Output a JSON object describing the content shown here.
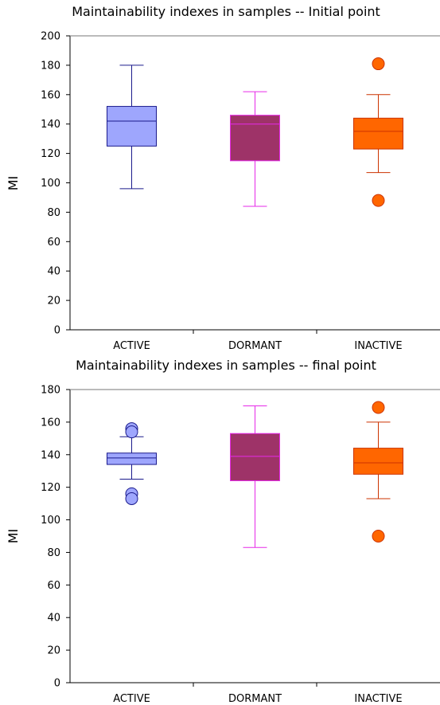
{
  "chart_data": [
    {
      "type": "box",
      "title": "Maintainability indexes in samples -- Initial point",
      "xlabel": "",
      "ylabel": "MI",
      "ylim": [
        0,
        200
      ],
      "yticks": [
        "0",
        "20",
        "40",
        "60",
        "80",
        "100",
        "120",
        "140",
        "160",
        "180",
        "200"
      ],
      "grid": false,
      "categories": [
        "ACTIVE",
        "DORMANT",
        "INACTIVE"
      ],
      "boxes": [
        {
          "category": "ACTIVE",
          "whisker_low": 96,
          "q1": 125,
          "median": 142,
          "q3": 152,
          "whisker_high": 180,
          "outliers": [],
          "fill": "#9ea6fd",
          "stroke": "#1a1a8c"
        },
        {
          "category": "DORMANT",
          "whisker_low": 84,
          "q1": 115,
          "median": 140,
          "q3": 146,
          "whisker_high": 162,
          "outliers": [],
          "fill": "#9e3368",
          "stroke": "#e62ae8"
        },
        {
          "category": "INACTIVE",
          "whisker_low": 107,
          "q1": 123,
          "median": 135,
          "q3": 144,
          "whisker_high": 160,
          "outliers": [
            181,
            88
          ],
          "fill": "#ff6600",
          "stroke": "#cc3300"
        }
      ]
    },
    {
      "type": "box",
      "title": "Maintainability indexes in samples -- final point",
      "xlabel": "",
      "ylabel": "MI",
      "ylim": [
        0,
        180
      ],
      "yticks": [
        "0",
        "20",
        "40",
        "60",
        "80",
        "100",
        "120",
        "140",
        "160",
        "180"
      ],
      "grid": false,
      "categories": [
        "ACTIVE",
        "DORMANT",
        "INACTIVE"
      ],
      "boxes": [
        {
          "category": "ACTIVE",
          "whisker_low": 125,
          "q1": 134,
          "median": 138,
          "q3": 141,
          "whisker_high": 151,
          "outliers": [
            156,
            154,
            116,
            113
          ],
          "fill": "#9ea6fd",
          "stroke": "#1a1a8c"
        },
        {
          "category": "DORMANT",
          "whisker_low": 83,
          "q1": 124,
          "median": 139,
          "q3": 153,
          "whisker_high": 170,
          "outliers": [],
          "fill": "#9e3368",
          "stroke": "#e62ae8"
        },
        {
          "category": "INACTIVE",
          "whisker_low": 113,
          "q1": 128,
          "median": 135,
          "q3": 144,
          "whisker_high": 160,
          "outliers": [
            169,
            90
          ],
          "fill": "#ff6600",
          "stroke": "#cc3300"
        }
      ]
    }
  ]
}
